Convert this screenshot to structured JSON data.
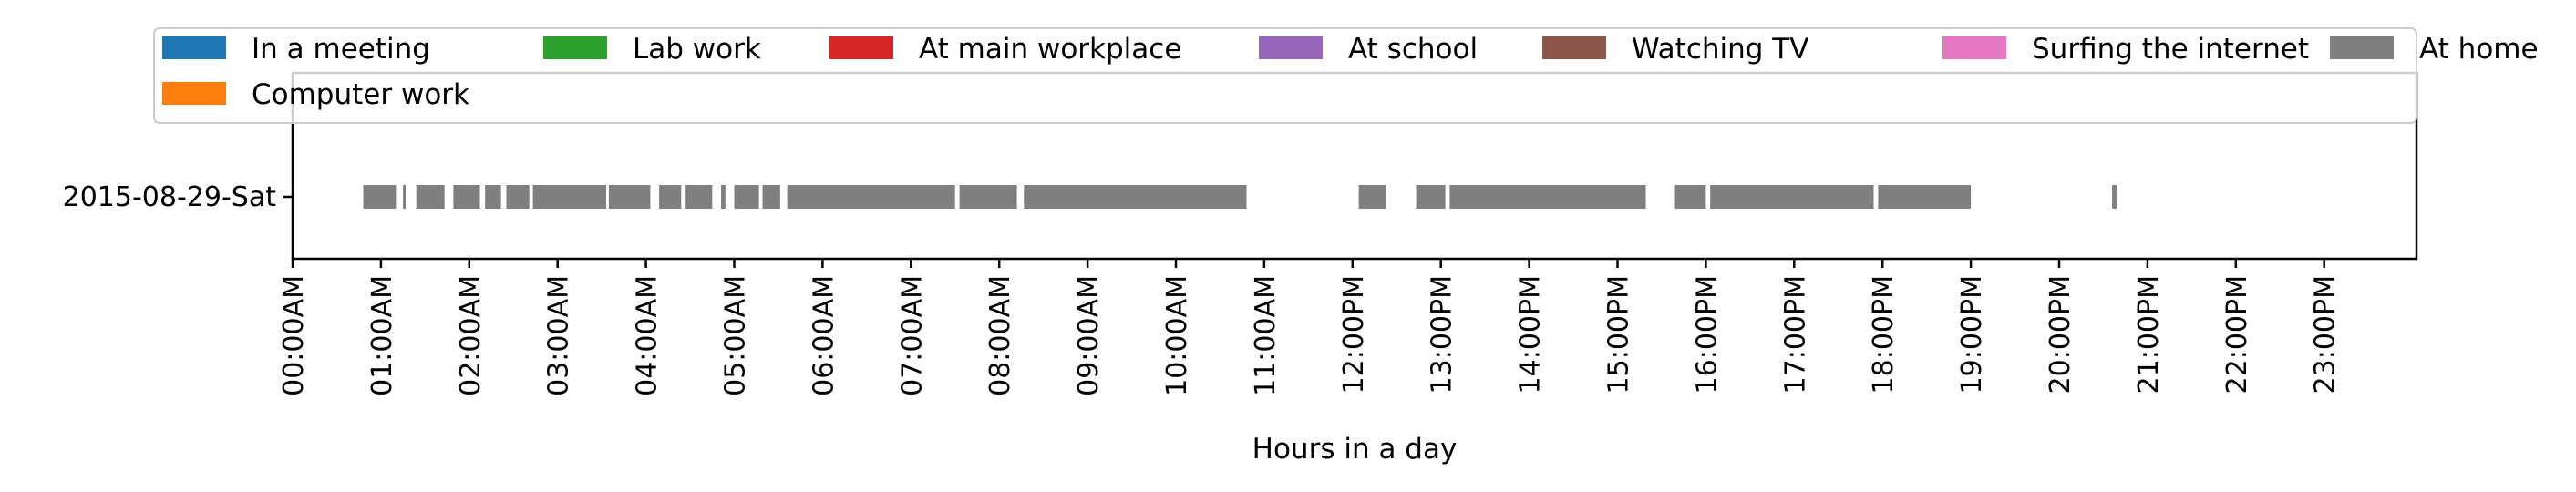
{
  "chart_data": {
    "type": "timeline",
    "xlabel": "Hours in a day",
    "xlim": [
      0,
      24
    ],
    "x_ticks": [
      "00:00AM",
      "01:00AM",
      "02:00AM",
      "03:00AM",
      "04:00AM",
      "05:00AM",
      "06:00AM",
      "07:00AM",
      "08:00AM",
      "09:00AM",
      "10:00AM",
      "11:00AM",
      "12:00PM",
      "13:00PM",
      "14:00PM",
      "15:00PM",
      "16:00PM",
      "17:00PM",
      "18:00PM",
      "19:00PM",
      "20:00PM",
      "21:00PM",
      "22:00PM",
      "23:00PM"
    ],
    "rows": [
      "2015-08-29-Sat"
    ],
    "legend_position": "top",
    "legend": [
      {
        "label": "In a meeting",
        "color": "#1f77b4"
      },
      {
        "label": "Lab work",
        "color": "#2ca02c"
      },
      {
        "label": "At main workplace",
        "color": "#d62728"
      },
      {
        "label": "At school",
        "color": "#9467bd"
      },
      {
        "label": "Watching TV",
        "color": "#8c564b"
      },
      {
        "label": "Surfing the internet",
        "color": "#e377c2"
      },
      {
        "label": "At home",
        "color": "#7f7f7f"
      },
      {
        "label": "Computer work",
        "color": "#ff7f0e"
      }
    ],
    "segments": [
      {
        "row": 0,
        "activity": "At home",
        "start": 0.8,
        "end": 1.17
      },
      {
        "row": 0,
        "activity": "At home",
        "start": 1.25,
        "end": 1.28
      },
      {
        "row": 0,
        "activity": "At home",
        "start": 1.4,
        "end": 1.72
      },
      {
        "row": 0,
        "activity": "At home",
        "start": 1.82,
        "end": 2.12
      },
      {
        "row": 0,
        "activity": "At home",
        "start": 2.18,
        "end": 2.36
      },
      {
        "row": 0,
        "activity": "At home",
        "start": 2.42,
        "end": 2.68
      },
      {
        "row": 0,
        "activity": "At home",
        "start": 2.72,
        "end": 3.55
      },
      {
        "row": 0,
        "activity": "At home",
        "start": 3.58,
        "end": 4.05
      },
      {
        "row": 0,
        "activity": "At home",
        "start": 4.15,
        "end": 4.4
      },
      {
        "row": 0,
        "activity": "At home",
        "start": 4.45,
        "end": 4.75
      },
      {
        "row": 0,
        "activity": "At home",
        "start": 4.85,
        "end": 4.9
      },
      {
        "row": 0,
        "activity": "At home",
        "start": 5.0,
        "end": 5.28
      },
      {
        "row": 0,
        "activity": "At home",
        "start": 5.32,
        "end": 5.52
      },
      {
        "row": 0,
        "activity": "At home",
        "start": 5.6,
        "end": 7.5
      },
      {
        "row": 0,
        "activity": "At home",
        "start": 7.55,
        "end": 8.2
      },
      {
        "row": 0,
        "activity": "At home",
        "start": 8.28,
        "end": 10.8
      },
      {
        "row": 0,
        "activity": "At home",
        "start": 12.07,
        "end": 12.38
      },
      {
        "row": 0,
        "activity": "At home",
        "start": 12.72,
        "end": 13.05
      },
      {
        "row": 0,
        "activity": "At home",
        "start": 13.1,
        "end": 15.32
      },
      {
        "row": 0,
        "activity": "At home",
        "start": 15.65,
        "end": 16.0
      },
      {
        "row": 0,
        "activity": "At home",
        "start": 16.05,
        "end": 17.9
      },
      {
        "row": 0,
        "activity": "At home",
        "start": 17.95,
        "end": 19.0
      },
      {
        "row": 0,
        "activity": "At home",
        "start": 20.6,
        "end": 20.65
      }
    ]
  }
}
